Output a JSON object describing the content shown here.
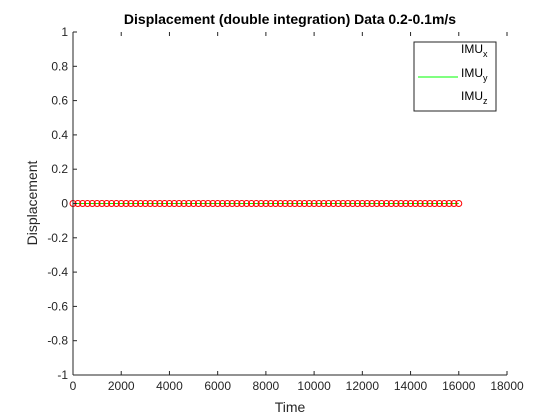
{
  "chart_data": {
    "type": "scatter",
    "title": "Displacement (double integration) Data 0.2-0.1m/s",
    "xlabel": "Time",
    "ylabel": "Displacement",
    "xlim": [
      0,
      18000
    ],
    "ylim": [
      -1,
      1
    ],
    "xticks": [
      0,
      2000,
      4000,
      6000,
      8000,
      10000,
      12000,
      14000,
      16000,
      18000
    ],
    "yticks": [
      1,
      0.8,
      0.6,
      0.4,
      0.2,
      0,
      -0.2,
      -0.4,
      -0.6,
      -0.8,
      -1
    ],
    "grid": false,
    "legend_position": "top-right",
    "series": [
      {
        "name": "IMU",
        "subscript": "x",
        "style": "none",
        "color": "#ffffff",
        "x_range": [
          0,
          16000
        ],
        "y": 0
      },
      {
        "name": "IMU",
        "subscript": "y",
        "style": "line",
        "color": "#00ff00",
        "x_range": [
          0,
          16000
        ],
        "y": 0
      },
      {
        "name": "IMU",
        "subscript": "z",
        "style": "markers",
        "marker": "circle",
        "color": "#ff0000",
        "x_range": [
          0,
          16000
        ],
        "y": 0,
        "sample_step": 200
      }
    ]
  }
}
